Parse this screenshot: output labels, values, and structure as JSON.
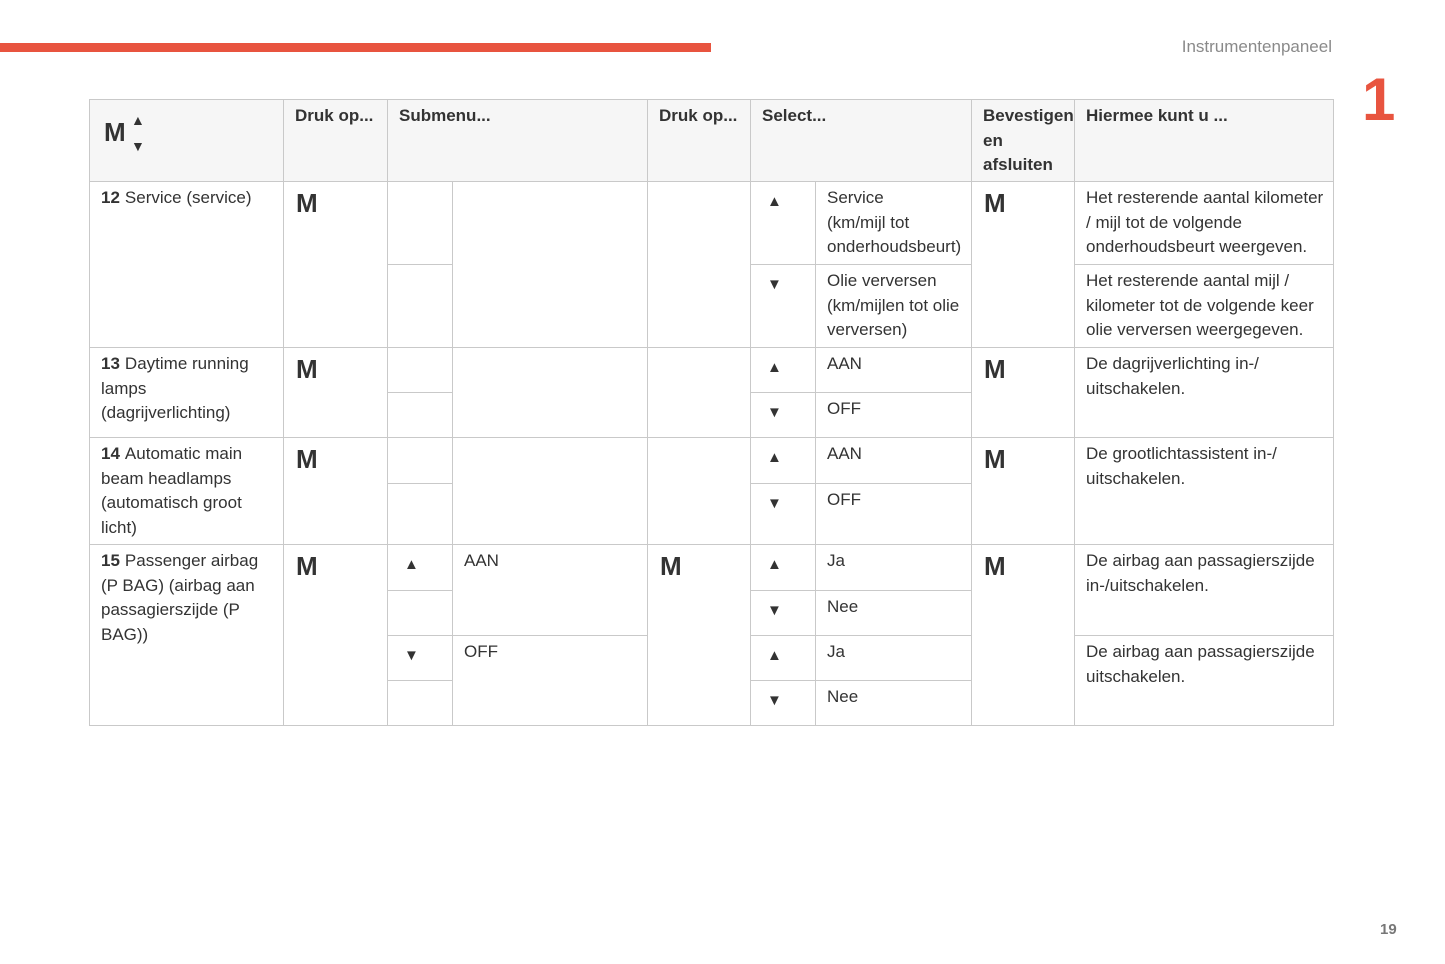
{
  "header": {
    "section": "Instrumentenpaneel",
    "chapter": "1",
    "page_number": "19"
  },
  "table": {
    "corner": {
      "menu": "M",
      "up": "▲",
      "down": "▼"
    },
    "columns": [
      "Druk op...",
      "Submenu...",
      "Druk op...",
      "Select...",
      "Bevestigen\nen\nafsluiten",
      "Hiermee kunt u ..."
    ],
    "rows": [
      {
        "number": "12",
        "label": "Service (service)",
        "press": "M",
        "select": [
          {
            "arrow": "▲",
            "text": "Service\n(km/mijl tot\nonderhoudsbeurt)"
          },
          {
            "arrow": "▼",
            "text": "Olie verversen\n(km/mijlen tot olie\nverversen)"
          }
        ],
        "confirm": "M",
        "result": [
          "Het resterende aantal kilometer / mijl tot de volgende onderhoudsbeurt weergeven.",
          "Het resterende aantal mijl / kilometer tot de volgende keer olie verversen weergegeven."
        ]
      },
      {
        "number": "13",
        "label": "Daytime running lamps (dagrijverlichting)",
        "press": "M",
        "select": [
          {
            "arrow": "▲",
            "text": "AAN"
          },
          {
            "arrow": "▼",
            "text": "OFF"
          }
        ],
        "confirm": "M",
        "result": [
          "De dagrijverlichting in-/\nuitschakelen."
        ]
      },
      {
        "number": "14",
        "label": "Automatic main beam headlamps (automatisch groot licht)",
        "press": "M",
        "select": [
          {
            "arrow": "▲",
            "text": "AAN"
          },
          {
            "arrow": "▼",
            "text": "OFF"
          }
        ],
        "confirm": "M",
        "result": [
          "De grootlichtassistent in-/\nuitschakelen."
        ]
      },
      {
        "number": "15",
        "label": "Passenger airbag (P BAG) (airbag aan passagierszijde (P BAG))",
        "press": "M",
        "submenu": [
          {
            "arrow": "▲",
            "text": "AAN"
          },
          {
            "arrow": "▼",
            "text": "OFF"
          }
        ],
        "press2": "M",
        "select": [
          {
            "arrow": "▲",
            "text": "Ja"
          },
          {
            "arrow": "▼",
            "text": "Nee"
          },
          {
            "arrow": "▲",
            "text": "Ja"
          },
          {
            "arrow": "▼",
            "text": "Nee"
          }
        ],
        "confirm": "M",
        "result": [
          "De airbag aan passagierszijde in-/uitschakelen.",
          "De airbag aan passagierszijde uitschakelen."
        ]
      }
    ]
  }
}
